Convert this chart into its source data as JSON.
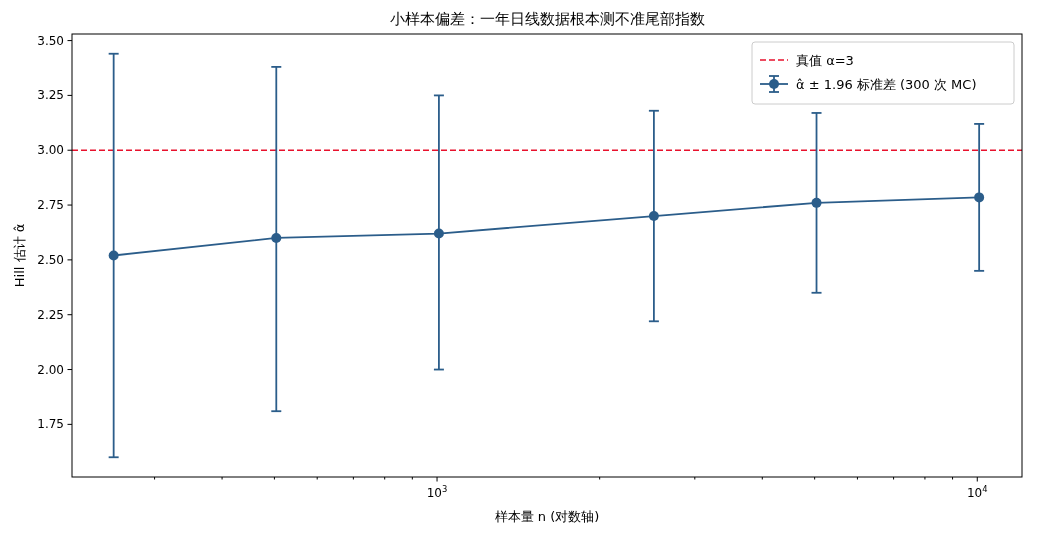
{
  "chart_data": {
    "type": "line",
    "title": "小样本偏差：一年日线数据根本测不准尾部指数",
    "xlabel": "样本量 n (对数轴)",
    "ylabel": "Hill 估计 α̂",
    "log": "x",
    "x": [
      252,
      504,
      1008,
      2520,
      5040,
      10080
    ],
    "series": [
      {
        "name": "α̂ ± 1.96 标准差 (300 次 MC)",
        "color": "#2b5d8a",
        "values": [
          2.52,
          2.6,
          2.62,
          2.7,
          2.76,
          2.785
        ],
        "errors": [
          [
            1.6,
            3.44
          ],
          [
            1.81,
            3.38
          ],
          [
            2.0,
            3.25
          ],
          [
            2.22,
            3.18
          ],
          [
            2.35,
            3.17
          ],
          [
            2.45,
            3.12
          ]
        ]
      }
    ],
    "ref_lines": [
      {
        "axis": "y",
        "value": 3,
        "label": "真值 α=3",
        "color": "#e8112d",
        "line_style": "dashed"
      }
    ],
    "xlim": [
      211,
      12100
    ],
    "ylim": [
      1.51,
      3.53
    ],
    "xticks": [
      {
        "value": 300,
        "label": null
      },
      {
        "value": 400,
        "label": null
      },
      {
        "value": 500,
        "label": null
      },
      {
        "value": 600,
        "label": null
      },
      {
        "value": 700,
        "label": null
      },
      {
        "value": 800,
        "label": null
      },
      {
        "value": 900,
        "label": null
      },
      {
        "value": 1000,
        "label": "10$^{3}$"
      },
      {
        "value": 2000,
        "label": null
      },
      {
        "value": 3000,
        "label": null
      },
      {
        "value": 4000,
        "label": null
      },
      {
        "value": 5000,
        "label": null
      },
      {
        "value": 6000,
        "label": null
      },
      {
        "value": 7000,
        "label": null
      },
      {
        "value": 8000,
        "label": null
      },
      {
        "value": 9000,
        "label": null
      },
      {
        "value": 10000,
        "label": "10$^{4}$"
      }
    ],
    "yticks": [
      {
        "value": 1.75,
        "label": "1.75"
      },
      {
        "value": 2,
        "label": "2.00"
      },
      {
        "value": 2.25,
        "label": "2.25"
      },
      {
        "value": 2.5,
        "label": "2.50"
      },
      {
        "value": 2.75,
        "label": "2.75"
      },
      {
        "value": 3,
        "label": "3.00"
      },
      {
        "value": 3.25,
        "label": "3.25"
      },
      {
        "value": 3.5,
        "label": "3.50"
      }
    ],
    "marker": "circle",
    "line_style": "solid",
    "grid": false,
    "legend": "top right"
  }
}
